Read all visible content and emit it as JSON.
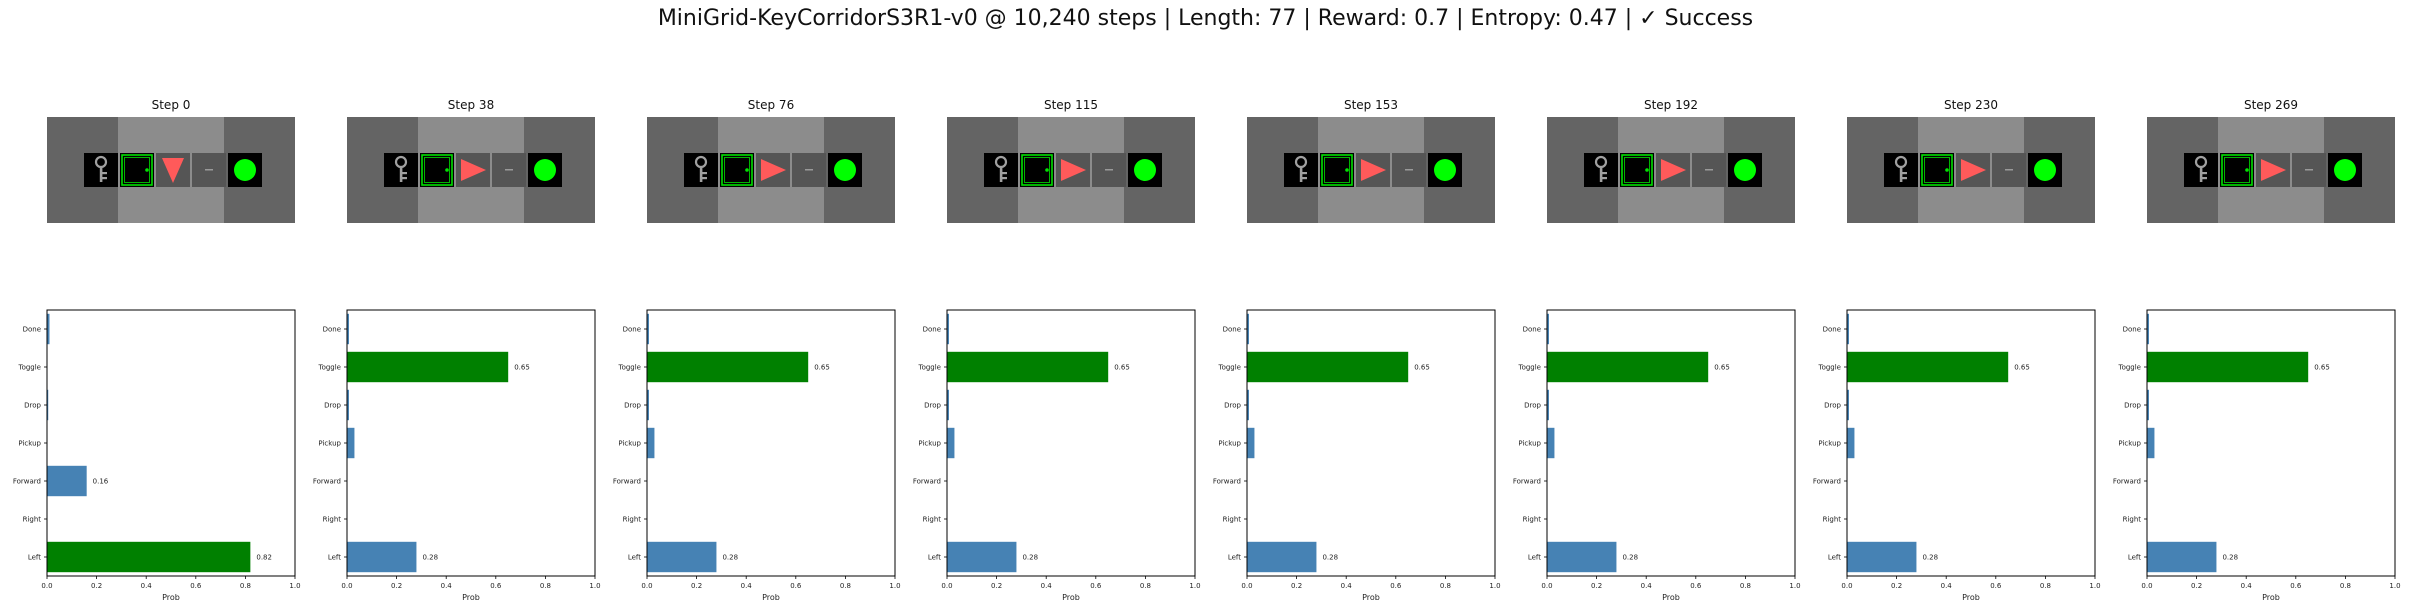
{
  "figure": {
    "title": "MiniGrid-KeyCorridorS3R1-v0 @ 10,240 steps | Length: 77 | Reward: 0.7 | Entropy: 0.47 | ✓ Success"
  },
  "colors": {
    "background_wall": "#646464",
    "corridor_floor": "#8c8c8c",
    "cell_black": "#000000",
    "door_green": "#00e000",
    "agent_red": "#ff5a5a",
    "goal_ball": "#00ff00",
    "key_gray": "#a0a0a0",
    "bar_default": "#4682b4",
    "bar_selected": "#008000"
  },
  "chart_data": [
    {
      "type": "bar",
      "orientation": "horizontal",
      "title": "Step 0",
      "icons": [
        "key-icon",
        "door-icon",
        "agent-icon",
        "empty-cell",
        "ball-icon"
      ],
      "agent_direction": "down",
      "categories": [
        "Left",
        "Right",
        "Forward",
        "Pickup",
        "Drop",
        "Toggle",
        "Done"
      ],
      "values": [
        0.82,
        0.0,
        0.16,
        0.0,
        0.005,
        0.0,
        0.01
      ],
      "selected": "Left",
      "value_labels": {
        "Left": "0.82",
        "Forward": "0.16"
      },
      "xlabel": "Prob",
      "xlim": [
        0,
        1
      ],
      "xticks": [
        "0.0",
        "0.2",
        "0.4",
        "0.6",
        "0.8",
        "1.0"
      ]
    },
    {
      "type": "bar",
      "orientation": "horizontal",
      "title": "Step 38",
      "icons": [
        "key-icon",
        "door-icon",
        "agent-icon",
        "empty-cell",
        "ball-icon"
      ],
      "agent_direction": "right",
      "categories": [
        "Left",
        "Right",
        "Forward",
        "Pickup",
        "Drop",
        "Toggle",
        "Done"
      ],
      "values": [
        0.28,
        0.0,
        0.0,
        0.03,
        0.008,
        0.65,
        0.008
      ],
      "selected": "Toggle",
      "value_labels": {
        "Left": "0.28",
        "Toggle": "0.65"
      },
      "xlabel": "Prob",
      "xlim": [
        0,
        1
      ],
      "xticks": [
        "0.0",
        "0.2",
        "0.4",
        "0.6",
        "0.8",
        "1.0"
      ]
    },
    {
      "type": "bar",
      "orientation": "horizontal",
      "title": "Step 76",
      "icons": [
        "key-icon",
        "door-icon",
        "agent-icon",
        "empty-cell",
        "ball-icon"
      ],
      "agent_direction": "right",
      "categories": [
        "Left",
        "Right",
        "Forward",
        "Pickup",
        "Drop",
        "Toggle",
        "Done"
      ],
      "values": [
        0.28,
        0.0,
        0.0,
        0.03,
        0.008,
        0.65,
        0.008
      ],
      "selected": "Toggle",
      "value_labels": {
        "Left": "0.28",
        "Toggle": "0.65"
      },
      "xlabel": "Prob",
      "xlim": [
        0,
        1
      ],
      "xticks": [
        "0.0",
        "0.2",
        "0.4",
        "0.6",
        "0.8",
        "1.0"
      ]
    },
    {
      "type": "bar",
      "orientation": "horizontal",
      "title": "Step 115",
      "icons": [
        "key-icon",
        "door-icon",
        "agent-icon",
        "empty-cell",
        "ball-icon"
      ],
      "agent_direction": "right",
      "categories": [
        "Left",
        "Right",
        "Forward",
        "Pickup",
        "Drop",
        "Toggle",
        "Done"
      ],
      "values": [
        0.28,
        0.0,
        0.0,
        0.03,
        0.008,
        0.65,
        0.008
      ],
      "selected": "Toggle",
      "value_labels": {
        "Left": "0.28",
        "Toggle": "0.65"
      },
      "xlabel": "Prob",
      "xlim": [
        0,
        1
      ],
      "xticks": [
        "0.0",
        "0.2",
        "0.4",
        "0.6",
        "0.8",
        "1.0"
      ]
    },
    {
      "type": "bar",
      "orientation": "horizontal",
      "title": "Step 153",
      "icons": [
        "key-icon",
        "door-icon",
        "agent-icon",
        "empty-cell",
        "ball-icon"
      ],
      "agent_direction": "right",
      "categories": [
        "Left",
        "Right",
        "Forward",
        "Pickup",
        "Drop",
        "Toggle",
        "Done"
      ],
      "values": [
        0.28,
        0.0,
        0.0,
        0.03,
        0.008,
        0.65,
        0.008
      ],
      "selected": "Toggle",
      "value_labels": {
        "Left": "0.28",
        "Toggle": "0.65"
      },
      "xlabel": "Prob",
      "xlim": [
        0,
        1
      ],
      "xticks": [
        "0.0",
        "0.2",
        "0.4",
        "0.6",
        "0.8",
        "1.0"
      ]
    },
    {
      "type": "bar",
      "orientation": "horizontal",
      "title": "Step 192",
      "icons": [
        "key-icon",
        "door-icon",
        "agent-icon",
        "empty-cell",
        "ball-icon"
      ],
      "agent_direction": "right",
      "categories": [
        "Left",
        "Right",
        "Forward",
        "Pickup",
        "Drop",
        "Toggle",
        "Done"
      ],
      "values": [
        0.28,
        0.0,
        0.0,
        0.03,
        0.008,
        0.65,
        0.008
      ],
      "selected": "Toggle",
      "value_labels": {
        "Left": "0.28",
        "Toggle": "0.65"
      },
      "xlabel": "Prob",
      "xlim": [
        0,
        1
      ],
      "xticks": [
        "0.0",
        "0.2",
        "0.4",
        "0.6",
        "0.8",
        "1.0"
      ]
    },
    {
      "type": "bar",
      "orientation": "horizontal",
      "title": "Step 230",
      "icons": [
        "key-icon",
        "door-icon",
        "agent-icon",
        "empty-cell",
        "ball-icon"
      ],
      "agent_direction": "right",
      "categories": [
        "Left",
        "Right",
        "Forward",
        "Pickup",
        "Drop",
        "Toggle",
        "Done"
      ],
      "values": [
        0.28,
        0.0,
        0.0,
        0.03,
        0.008,
        0.65,
        0.008
      ],
      "selected": "Toggle",
      "value_labels": {
        "Left": "0.28",
        "Toggle": "0.65"
      },
      "xlabel": "Prob",
      "xlim": [
        0,
        1
      ],
      "xticks": [
        "0.0",
        "0.2",
        "0.4",
        "0.6",
        "0.8",
        "1.0"
      ]
    },
    {
      "type": "bar",
      "orientation": "horizontal",
      "title": "Step 269",
      "icons": [
        "key-icon",
        "door-icon",
        "agent-icon",
        "empty-cell",
        "ball-icon"
      ],
      "agent_direction": "right",
      "categories": [
        "Left",
        "Right",
        "Forward",
        "Pickup",
        "Drop",
        "Toggle",
        "Done"
      ],
      "values": [
        0.28,
        0.0,
        0.0,
        0.03,
        0.008,
        0.65,
        0.008
      ],
      "selected": "Toggle",
      "value_labels": {
        "Left": "0.28",
        "Toggle": "0.65"
      },
      "xlabel": "Prob",
      "xlim": [
        0,
        1
      ],
      "xticks": [
        "0.0",
        "0.2",
        "0.4",
        "0.6",
        "0.8",
        "1.0"
      ]
    }
  ]
}
